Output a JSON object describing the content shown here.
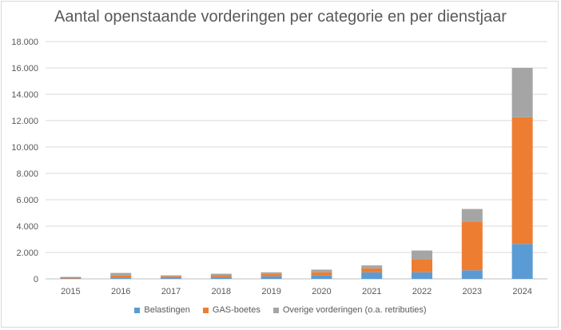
{
  "chart_data": {
    "type": "bar",
    "stacked": true,
    "title": "Aantal openstaande vorderingen per categorie en per dienstjaar",
    "xlabel": "",
    "ylabel": "",
    "ylim": [
      0,
      18000
    ],
    "y_ticks": [
      "0",
      "2.000",
      "4.000",
      "6.000",
      "8.000",
      "10.000",
      "12.000",
      "14.000",
      "16.000",
      "18.000"
    ],
    "y_tick_values": [
      0,
      2000,
      4000,
      6000,
      8000,
      10000,
      12000,
      14000,
      16000,
      18000
    ],
    "categories": [
      "2015",
      "2016",
      "2017",
      "2018",
      "2019",
      "2020",
      "2021",
      "2022",
      "2023",
      "2024"
    ],
    "grid": true,
    "legend_position": "bottom",
    "series": [
      {
        "name": "Belastingen",
        "color": "#5b9bd5",
        "values": [
          30,
          100,
          60,
          140,
          200,
          250,
          500,
          500,
          650,
          2650
        ]
      },
      {
        "name": "GAS-boetes",
        "color": "#ed7d31",
        "values": [
          100,
          150,
          130,
          130,
          180,
          250,
          300,
          1000,
          3700,
          9600
        ]
      },
      {
        "name": "Overige vorderingen (o.a. retributies)",
        "color": "#a5a5a5",
        "values": [
          20,
          200,
          80,
          120,
          120,
          200,
          220,
          650,
          950,
          3750
        ]
      }
    ]
  }
}
